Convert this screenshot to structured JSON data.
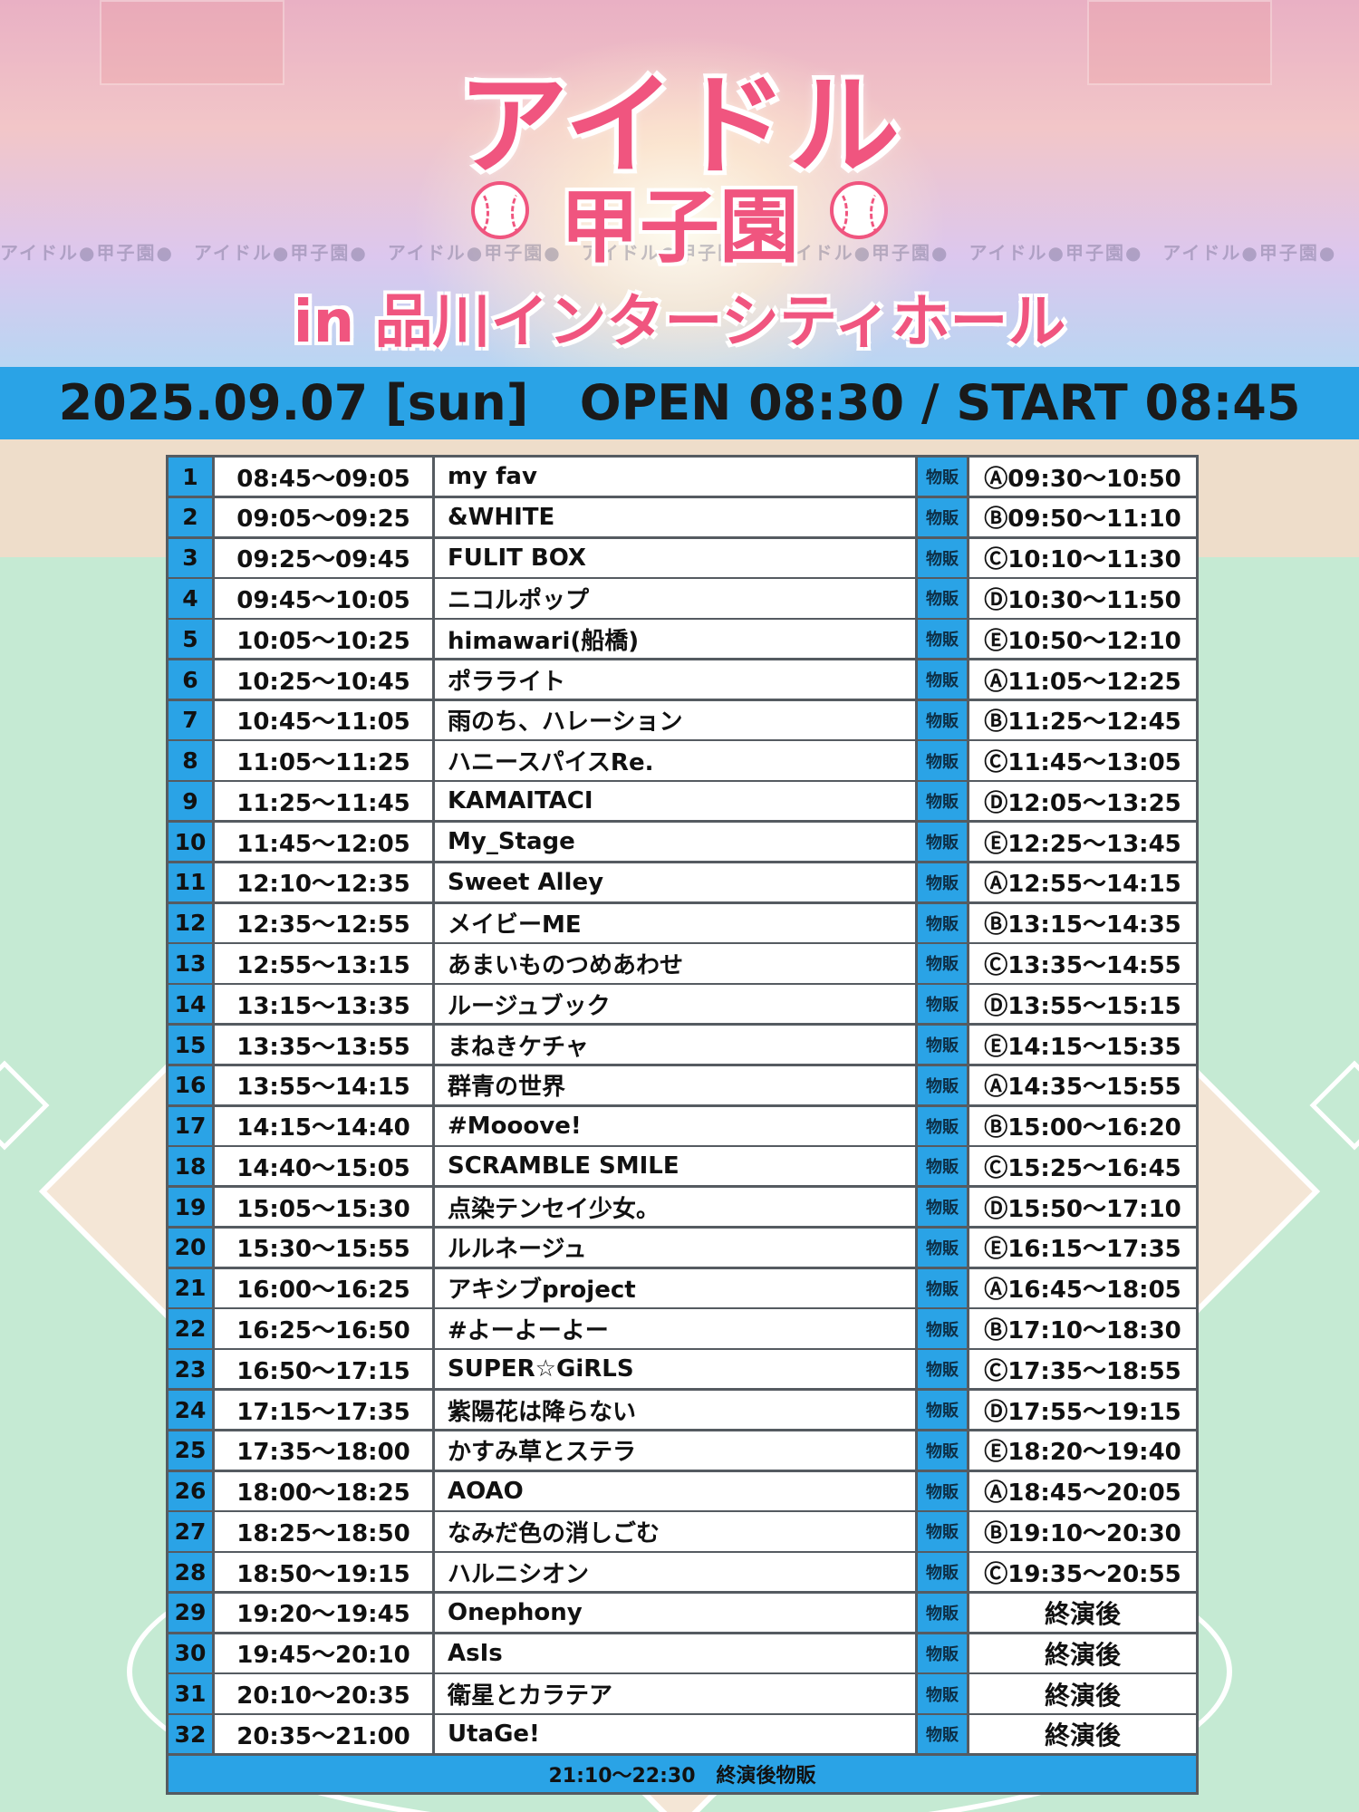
{
  "header": {
    "logo_line1": "アイドル",
    "logo_line2": "甲子園",
    "venue": "in 品川インターシティホール",
    "strip_text": "アイドル●甲子園●　アイドル●甲子園●　アイドル●甲子園●　アイドル●甲子園●　アイドル●甲子園●　アイドル●甲子園●　アイドル●甲子園●"
  },
  "band": {
    "text": "2025.09.07 [sun]   OPEN 08:30 / START 08:45"
  },
  "colors": {
    "accent_blue": "#2aa3e6",
    "logo_pink": "#f0557f",
    "grid_gray": "#555b61"
  },
  "schedule": {
    "goods_label": "物販",
    "rows": [
      {
        "no": "1",
        "time": "08:45〜09:05",
        "name": "my fav",
        "sale": "Ⓐ09:30〜10:50"
      },
      {
        "no": "2",
        "time": "09:05〜09:25",
        "name": "&WHITE",
        "sale": "Ⓑ09:50〜11:10"
      },
      {
        "no": "3",
        "time": "09:25〜09:45",
        "name": "FULIT BOX",
        "sale": "Ⓒ10:10〜11:30"
      },
      {
        "no": "4",
        "time": "09:45〜10:05",
        "name": "ニコルポップ",
        "sale": "Ⓓ10:30〜11:50"
      },
      {
        "no": "5",
        "time": "10:05〜10:25",
        "name": "himawari(船橋)",
        "sale": "Ⓔ10:50〜12:10"
      },
      {
        "no": "6",
        "time": "10:25〜10:45",
        "name": "ポラライト",
        "sale": "Ⓐ11:05〜12:25"
      },
      {
        "no": "7",
        "time": "10:45〜11:05",
        "name": "雨のち、ハレーション",
        "sale": "Ⓑ11:25〜12:45"
      },
      {
        "no": "8",
        "time": "11:05〜11:25",
        "name": "ハニースパイスRe.",
        "sale": "Ⓒ11:45〜13:05"
      },
      {
        "no": "9",
        "time": "11:25〜11:45",
        "name": "KAMAITACI",
        "sale": "Ⓓ12:05〜13:25"
      },
      {
        "no": "10",
        "time": "11:45〜12:05",
        "name": "My_Stage",
        "sale": "Ⓔ12:25〜13:45"
      },
      {
        "no": "11",
        "time": "12:10〜12:35",
        "name": "Sweet Alley",
        "sale": "Ⓐ12:55〜14:15"
      },
      {
        "no": "12",
        "time": "12:35〜12:55",
        "name": "メイビーME",
        "sale": "Ⓑ13:15〜14:35"
      },
      {
        "no": "13",
        "time": "12:55〜13:15",
        "name": "あまいものつめあわせ",
        "sale": "Ⓒ13:35〜14:55"
      },
      {
        "no": "14",
        "time": "13:15〜13:35",
        "name": "ルージュブック",
        "sale": "Ⓓ13:55〜15:15"
      },
      {
        "no": "15",
        "time": "13:35〜13:55",
        "name": "まねきケチャ",
        "sale": "Ⓔ14:15〜15:35"
      },
      {
        "no": "16",
        "time": "13:55〜14:15",
        "name": "群青の世界",
        "sale": "Ⓐ14:35〜15:55"
      },
      {
        "no": "17",
        "time": "14:15〜14:40",
        "name": "#Mooove!",
        "sale": "Ⓑ15:00〜16:20"
      },
      {
        "no": "18",
        "time": "14:40〜15:05",
        "name": "SCRAMBLE SMILE",
        "sale": "Ⓒ15:25〜16:45"
      },
      {
        "no": "19",
        "time": "15:05〜15:30",
        "name": "点染テンセイ少女。",
        "sale": "Ⓓ15:50〜17:10"
      },
      {
        "no": "20",
        "time": "15:30〜15:55",
        "name": "ルルネージュ",
        "sale": "Ⓔ16:15〜17:35"
      },
      {
        "no": "21",
        "time": "16:00〜16:25",
        "name": "アキシブproject",
        "sale": "Ⓐ16:45〜18:05"
      },
      {
        "no": "22",
        "time": "16:25〜16:50",
        "name": "#よーよーよー",
        "sale": "Ⓑ17:10〜18:30"
      },
      {
        "no": "23",
        "time": "16:50〜17:15",
        "name": "SUPER☆GiRLS",
        "sale": "Ⓒ17:35〜18:55"
      },
      {
        "no": "24",
        "time": "17:15〜17:35",
        "name": "紫陽花は降らない",
        "sale": "Ⓓ17:55〜19:15"
      },
      {
        "no": "25",
        "time": "17:35〜18:00",
        "name": "かすみ草とステラ",
        "sale": "Ⓔ18:20〜19:40"
      },
      {
        "no": "26",
        "time": "18:00〜18:25",
        "name": "AOAO",
        "sale": "Ⓐ18:45〜20:05"
      },
      {
        "no": "27",
        "time": "18:25〜18:50",
        "name": "なみだ色の消しごむ",
        "sale": "Ⓑ19:10〜20:30"
      },
      {
        "no": "28",
        "time": "18:50〜19:15",
        "name": "ハルニシオン",
        "sale": "Ⓒ19:35〜20:55"
      },
      {
        "no": "29",
        "time": "19:20〜19:45",
        "name": "Onephony",
        "sale": "終演後"
      },
      {
        "no": "30",
        "time": "19:45〜20:10",
        "name": "AsIs",
        "sale": "終演後"
      },
      {
        "no": "31",
        "time": "20:10〜20:35",
        "name": "衛星とカラテア",
        "sale": "終演後"
      },
      {
        "no": "32",
        "time": "20:35〜21:00",
        "name": "UtaGe!",
        "sale": "終演後"
      }
    ],
    "footer": "21:10〜22:30   終演後物販"
  }
}
